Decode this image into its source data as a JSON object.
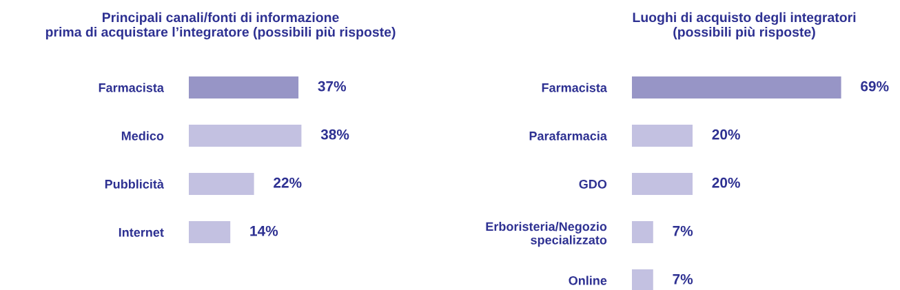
{
  "chart_data": [
    {
      "type": "bar",
      "orientation": "horizontal",
      "title": "Principali canali/fonti di informazione\nprima di acquistare l’integratore (possibili più risposte)",
      "categories": [
        "Farmacista",
        "Medico",
        "Pubblicità",
        "Internet"
      ],
      "values": [
        37,
        38,
        22,
        14
      ],
      "value_labels": [
        "37%",
        "38%",
        "22%",
        "14%"
      ],
      "colors": [
        "#9795c6",
        "#c3c1e1",
        "#c3c1e1",
        "#c3c1e1"
      ],
      "tick_labels": "y",
      "grid": false,
      "legend": false
    },
    {
      "type": "bar",
      "orientation": "horizontal",
      "title": "Luoghi di acquisto degli integratori\n(possibili più risposte)",
      "categories": [
        "Farmacista",
        "Parafarmacia",
        "GDO",
        "Erboristeria/Negozio\nspecializzato",
        "Online"
      ],
      "values": [
        69,
        20,
        20,
        7,
        7
      ],
      "value_labels": [
        "69%",
        "20%",
        "20%",
        "7%",
        "7%"
      ],
      "colors": [
        "#9795c6",
        "#c3c1e1",
        "#c3c1e1",
        "#c3c1e1",
        "#c3c1e1"
      ],
      "tick_labels": "y",
      "grid": false,
      "legend": false
    }
  ]
}
